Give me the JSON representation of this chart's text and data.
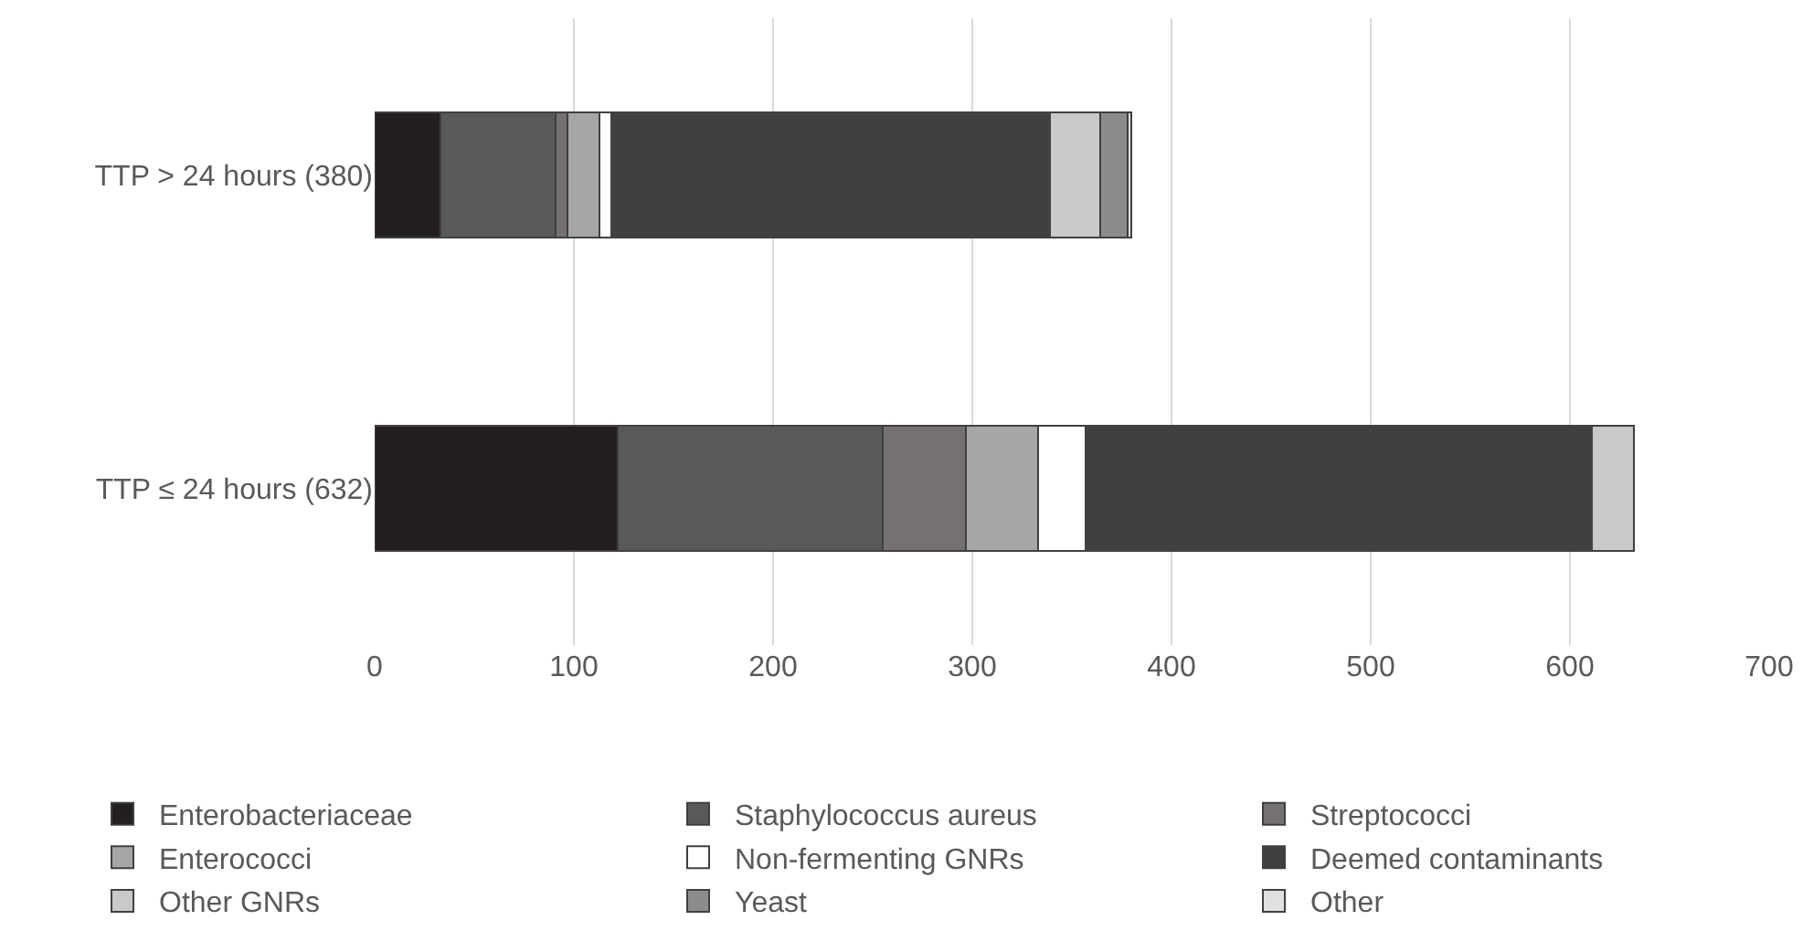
{
  "chart_data": {
    "type": "bar",
    "orientation": "horizontal",
    "stacked": true,
    "categories": [
      "TTP > 24 hours (380)",
      "TTP ≤ 24 hours (632)"
    ],
    "series": [
      {
        "name": "Enterobacteriaceae",
        "color": "#231f20",
        "values": [
          33,
          122
        ]
      },
      {
        "name": "Staphylococcus aureus",
        "color": "#595959",
        "values": [
          58,
          133
        ]
      },
      {
        "name": "Streptococci",
        "color": "#767171",
        "values": [
          6,
          42
        ]
      },
      {
        "name": "Enterococci",
        "color": "#a6a6a6",
        "values": [
          16,
          36
        ]
      },
      {
        "name": "Non-fermenting GNRs",
        "color": "#ffffff",
        "values": [
          6,
          24
        ]
      },
      {
        "name": "Deemed contaminants",
        "color": "#404040",
        "values": [
          220,
          254
        ]
      },
      {
        "name": "Other GNRs",
        "color": "#c9c9c9",
        "values": [
          25,
          21
        ]
      },
      {
        "name": "Yeast",
        "color": "#8c8c8c",
        "values": [
          14,
          0
        ]
      },
      {
        "name": "Other",
        "color": "#e0e0e0",
        "values": [
          2,
          0
        ]
      }
    ],
    "xlim": [
      0,
      700
    ],
    "xticks": [
      0,
      100,
      200,
      300,
      400,
      500,
      600,
      700
    ],
    "grid": "x",
    "legend": "bottom"
  }
}
